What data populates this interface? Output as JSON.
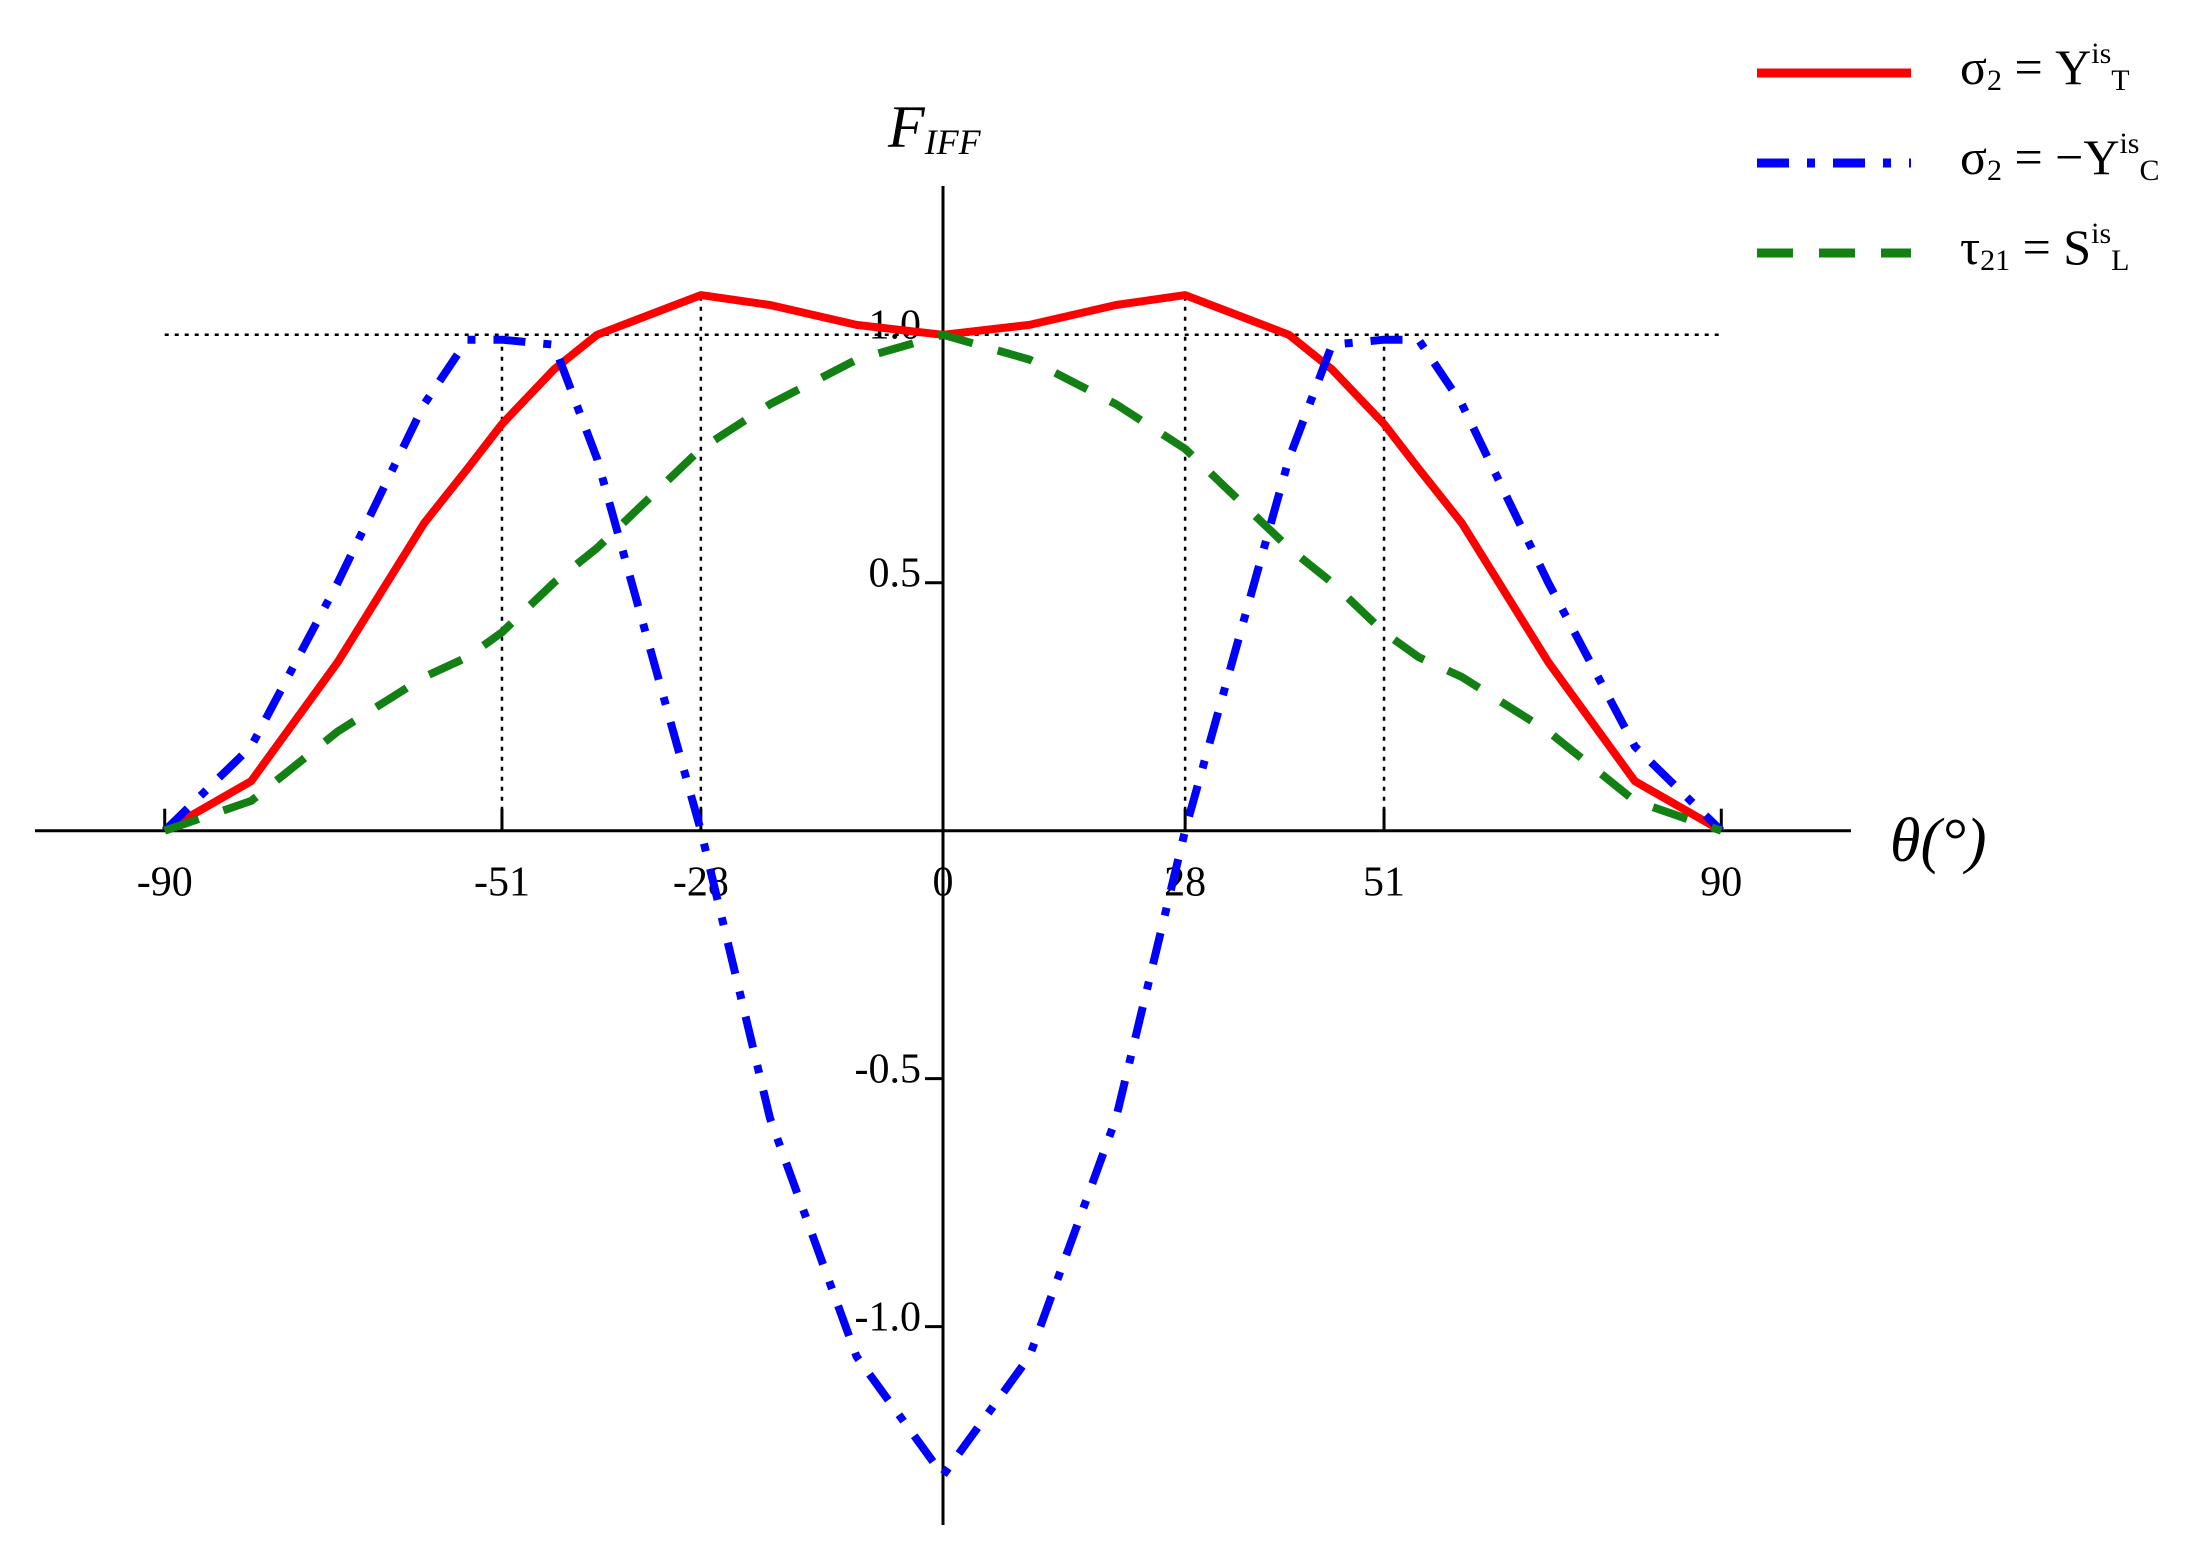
{
  "chart_data": {
    "type": "line",
    "xlabel": "θ(°)",
    "ylabel": [
      {
        "t": "F"
      },
      {
        "t": "IFF",
        "sub": true
      }
    ],
    "x": [
      -90,
      -80,
      -70,
      -60,
      -55,
      -51,
      -45,
      -40,
      -28,
      -20,
      -10,
      0,
      10,
      20,
      28,
      40,
      45,
      51,
      55,
      60,
      70,
      80,
      90
    ],
    "series": [
      {
        "name": [
          {
            "t": "σ"
          },
          {
            "t": "2",
            "sub": true
          },
          {
            "t": " = Y"
          },
          {
            "t": "is",
            "sup": true
          },
          {
            "t": "T",
            "sub": true
          }
        ],
        "color": "#ff0000",
        "dash": "none",
        "values": [
          0,
          0.1,
          0.34,
          0.62,
          0.73,
          0.82,
          0.93,
          1.0,
          1.08,
          1.06,
          1.02,
          1.0,
          1.02,
          1.06,
          1.08,
          1.0,
          0.93,
          0.82,
          0.73,
          0.62,
          0.34,
          0.1,
          0
        ]
      },
      {
        "name": [
          {
            "t": "σ"
          },
          {
            "t": "2",
            "sub": true
          },
          {
            "t": " = −Y"
          },
          {
            "t": "is",
            "sup": true
          },
          {
            "t": "C",
            "sub": true
          }
        ],
        "color": "#0000ff",
        "dash": "32 18 8 18",
        "values": [
          0,
          0.17,
          0.5,
          0.86,
          0.99,
          0.99,
          0.98,
          0.75,
          0,
          -0.58,
          -1.06,
          -1.3,
          -1.06,
          -0.58,
          0,
          0.75,
          0.98,
          0.99,
          0.99,
          0.86,
          0.5,
          0.17,
          0
        ]
      },
      {
        "name": [
          {
            "t": "τ"
          },
          {
            "t": "21",
            "sub": true
          },
          {
            "t": " = S"
          },
          {
            "t": "is",
            "sup": true
          },
          {
            "t": "L",
            "sub": true
          }
        ],
        "color": "#138013",
        "dash": "36 26",
        "values": [
          0,
          0.06,
          0.2,
          0.31,
          0.35,
          0.4,
          0.5,
          0.57,
          0.77,
          0.86,
          0.95,
          1.0,
          0.95,
          0.86,
          0.77,
          0.57,
          0.5,
          0.4,
          0.35,
          0.31,
          0.2,
          0.06,
          0
        ]
      }
    ],
    "xlim": [
      -105,
      105
    ],
    "ylim": [
      -1.4,
      1.3
    ],
    "xticks": [
      -90,
      -51,
      -28,
      0,
      28,
      51,
      90
    ],
    "yticks": [
      {
        "value": -1,
        "label": "-1.0"
      },
      -0.5,
      0.5,
      {
        "value": 1,
        "label": "1.0"
      }
    ],
    "hline": 1,
    "guides": [
      {
        "x": -51,
        "y": 1
      },
      {
        "x": -28,
        "y": 1.08
      },
      {
        "x": 28,
        "y": 1.08
      },
      {
        "x": 51,
        "y": 1
      }
    ],
    "legend": "upper right"
  }
}
